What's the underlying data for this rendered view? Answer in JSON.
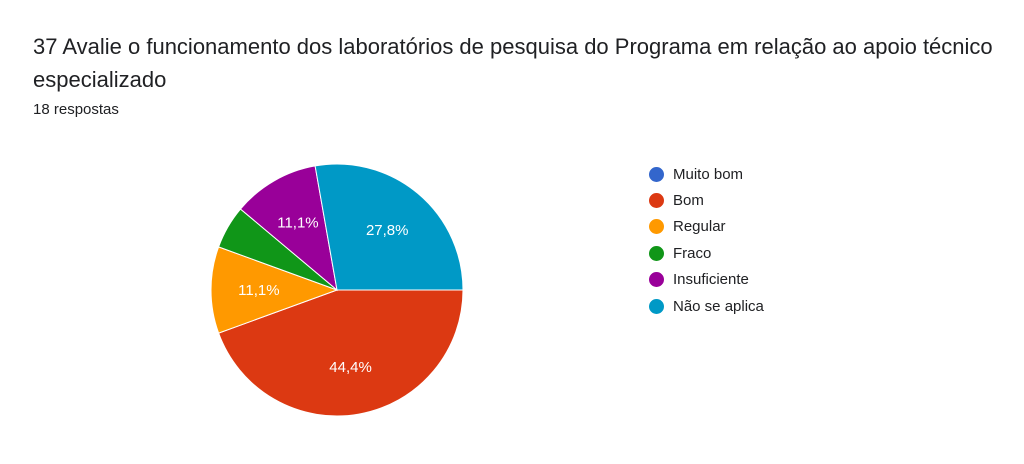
{
  "header": {
    "title": "37 Avalie o funcionamento dos laboratórios de pesquisa do Programa em relação ao apoio técnico especializado",
    "responses": "18 respostas"
  },
  "chart_data": {
    "type": "pie",
    "title": "37 Avalie o funcionamento dos laboratórios de pesquisa do Programa em relação ao apoio técnico especializado",
    "legend_position": "right",
    "slices": [
      {
        "name": "Muito bom",
        "value": 0,
        "percent": 0.0,
        "label": "",
        "color": "#3366cc"
      },
      {
        "name": "Bom",
        "value": 8,
        "percent": 44.4,
        "label": "44,4%",
        "color": "#dc3912"
      },
      {
        "name": "Regular",
        "value": 2,
        "percent": 11.1,
        "label": "11,1%",
        "color": "#ff9900"
      },
      {
        "name": "Fraco",
        "value": 1,
        "percent": 5.6,
        "label": "",
        "color": "#109618"
      },
      {
        "name": "Insuficiente",
        "value": 2,
        "percent": 11.1,
        "label": "11,1%",
        "color": "#990099"
      },
      {
        "name": "Não se aplica",
        "value": 5,
        "percent": 27.8,
        "label": "27,8%",
        "color": "#0099c6"
      }
    ]
  }
}
